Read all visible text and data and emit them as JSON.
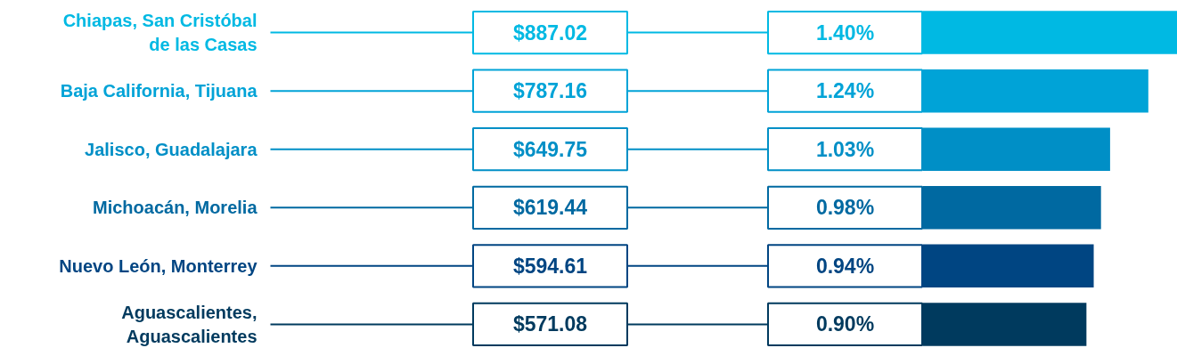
{
  "chart_data": {
    "type": "bar",
    "orientation": "horizontal",
    "categories": [
      "Chiapas, San Cristóbal de las Casas",
      "Baja California, Tijuana",
      "Jalisco, Guadalajara",
      "Michoacán, Morelia",
      "Nuevo León, Monterrey",
      "Aguascalientes, Aguascalientes"
    ],
    "values": [
      1.4,
      1.24,
      1.03,
      0.98,
      0.94,
      0.9
    ],
    "value_labels": [
      "1.40%",
      "1.24%",
      "1.03%",
      "0.98%",
      "0.94%",
      "0.90%"
    ],
    "colors": [
      "#00b9e3",
      "#00a3d7",
      "#008fc6",
      "#0069a1",
      "#004582",
      "#003a5e"
    ],
    "annotations": [
      "$887.02",
      "$787.16",
      "$649.75",
      "$619.44",
      "$594.61",
      "$571.08"
    ]
  }
}
